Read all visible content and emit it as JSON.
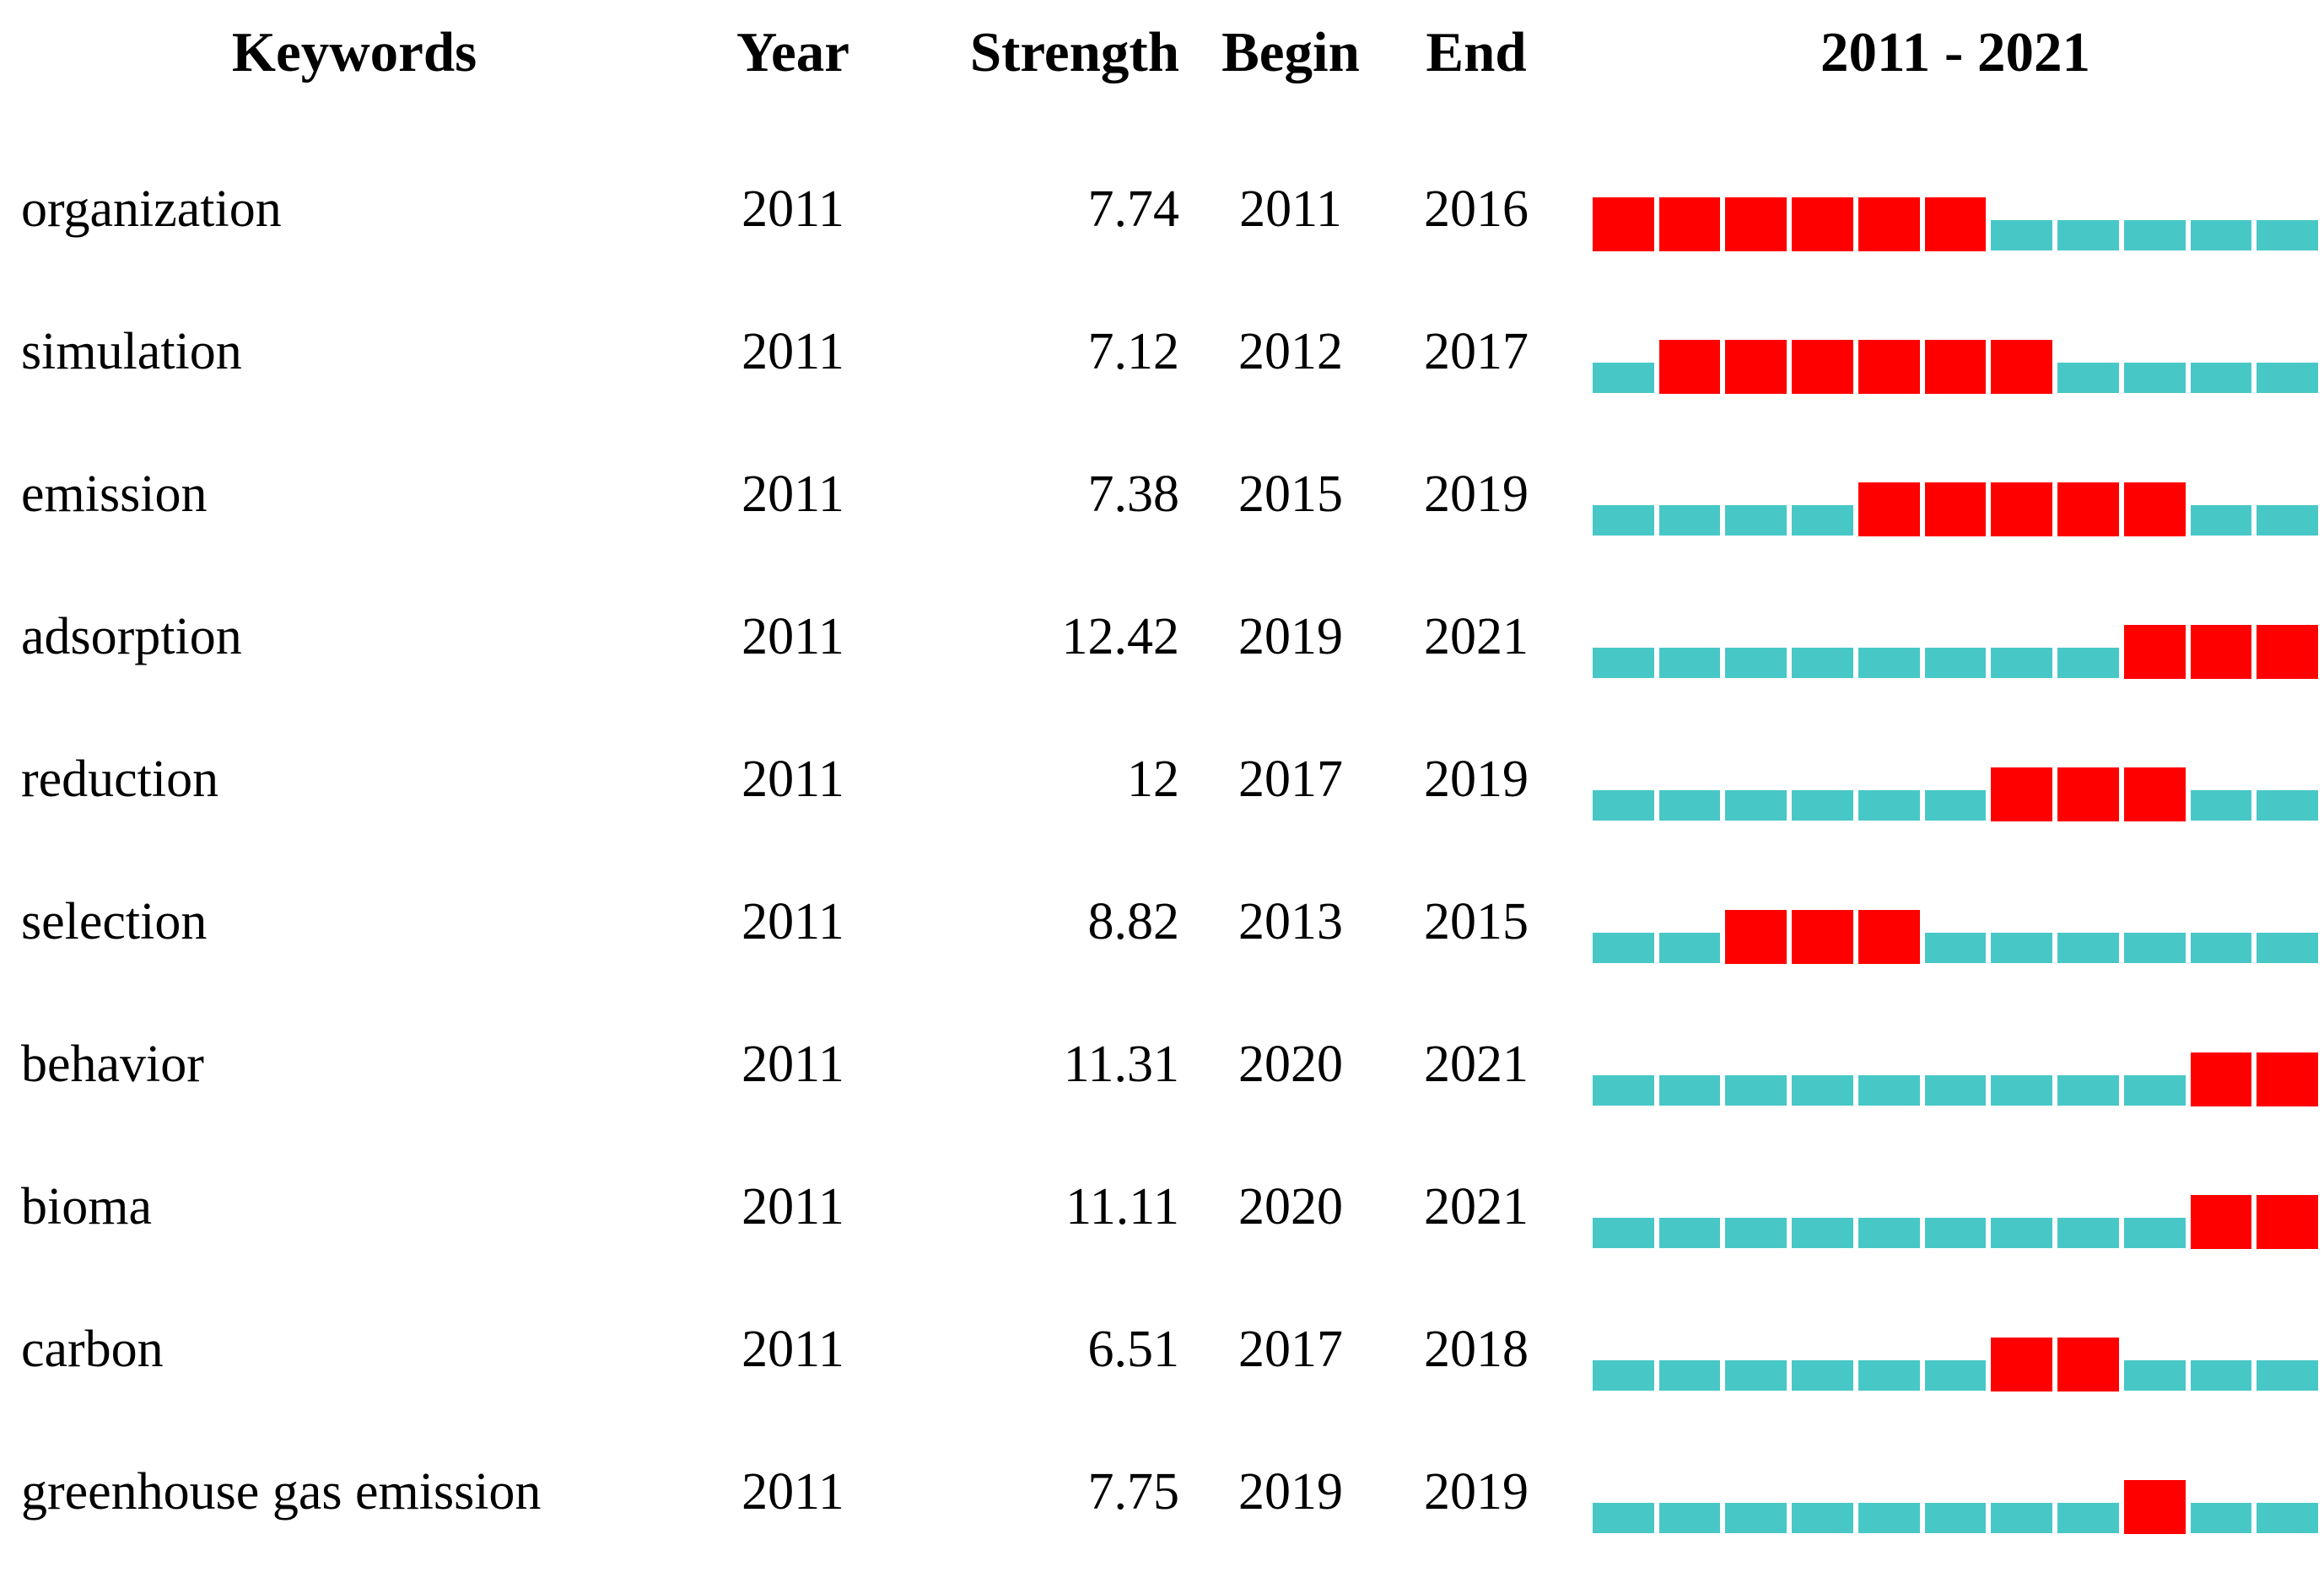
{
  "header": {
    "keywords": "Keywords",
    "year": "Year",
    "strength": "Strength",
    "begin": "Begin",
    "end": "End",
    "period": "2011 - 2021"
  },
  "timeline": {
    "start_year": 2011,
    "end_year": 2021
  },
  "colors": {
    "burst_red": "#FF0000",
    "base_teal": "#48C7C7",
    "text": "#000000"
  },
  "rows": [
    {
      "keyword": "organization",
      "year": "2011",
      "strength": "7.74",
      "begin": "2011",
      "end": "2016"
    },
    {
      "keyword": "simulation",
      "year": "2011",
      "strength": "7.12",
      "begin": "2012",
      "end": "2017"
    },
    {
      "keyword": "emission",
      "year": "2011",
      "strength": "7.38",
      "begin": "2015",
      "end": "2019"
    },
    {
      "keyword": "adsorption",
      "year": "2011",
      "strength": "12.42",
      "begin": "2019",
      "end": "2021"
    },
    {
      "keyword": "reduction",
      "year": "2011",
      "strength": "12",
      "begin": "2017",
      "end": "2019"
    },
    {
      "keyword": "selection",
      "year": "2011",
      "strength": "8.82",
      "begin": "2013",
      "end": "2015"
    },
    {
      "keyword": "behavior",
      "year": "2011",
      "strength": "11.31",
      "begin": "2020",
      "end": "2021"
    },
    {
      "keyword": "bioma",
      "year": "2011",
      "strength": "11.11",
      "begin": "2020",
      "end": "2021"
    },
    {
      "keyword": "carbon",
      "year": "2011",
      "strength": "6.51",
      "begin": "2017",
      "end": "2018"
    },
    {
      "keyword": "greenhouse gas emission",
      "year": "2011",
      "strength": "7.75",
      "begin": "2019",
      "end": "2019"
    }
  ],
  "chart_data": {
    "type": "table",
    "title": "2011 - 2021",
    "columns": [
      "Keywords",
      "Year",
      "Strength",
      "Begin",
      "End",
      "2011 - 2021"
    ],
    "timeline_range": [
      2011,
      2021
    ],
    "burst_color": "#FF0000",
    "timeline_color": "#48C7C7",
    "rows": [
      [
        "organization",
        2011,
        7.74,
        2011,
        2016
      ],
      [
        "simulation",
        2011,
        7.12,
        2012,
        2017
      ],
      [
        "emission",
        2011,
        7.38,
        2015,
        2019
      ],
      [
        "adsorption",
        2011,
        12.42,
        2019,
        2021
      ],
      [
        "reduction",
        2011,
        12,
        2017,
        2019
      ],
      [
        "selection",
        2011,
        8.82,
        2013,
        2015
      ],
      [
        "behavior",
        2011,
        11.31,
        2020,
        2021
      ],
      [
        "bioma",
        2011,
        11.11,
        2020,
        2021
      ],
      [
        "carbon",
        2011,
        6.51,
        2017,
        2018
      ],
      [
        "greenhouse gas emission",
        2011,
        7.75,
        2019,
        2019
      ]
    ]
  }
}
